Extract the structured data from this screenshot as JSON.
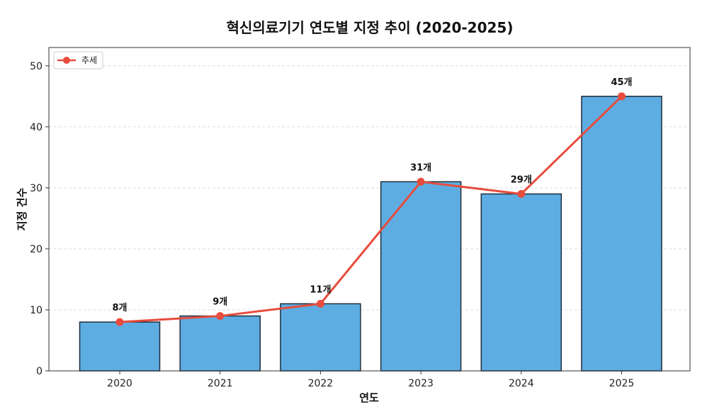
{
  "chart_data": {
    "type": "bar",
    "title": "혁신의료기기 연도별 지정 추이 (2020-2025)",
    "xlabel": "연도",
    "ylabel": "지정 건수",
    "categories": [
      "2020",
      "2021",
      "2022",
      "2023",
      "2024",
      "2025"
    ],
    "values": [
      8,
      9,
      11,
      31,
      29,
      45
    ],
    "data_labels": [
      "8개",
      "9개",
      "11개",
      "31개",
      "29개",
      "45개"
    ],
    "ylim": [
      0,
      53
    ],
    "yticks": [
      "0",
      "10",
      "20",
      "30",
      "40",
      "50"
    ],
    "grid": true,
    "legend": {
      "position": "top-left",
      "entries": [
        "추세"
      ]
    },
    "overlay": {
      "type": "line",
      "name": "추세",
      "values": [
        8,
        9,
        11,
        31,
        29,
        45
      ]
    },
    "colors": {
      "bar": "#5dade2",
      "bar_edge": "#1f2d3d",
      "line": "#e74c3c",
      "grid": "#dddddd"
    }
  }
}
